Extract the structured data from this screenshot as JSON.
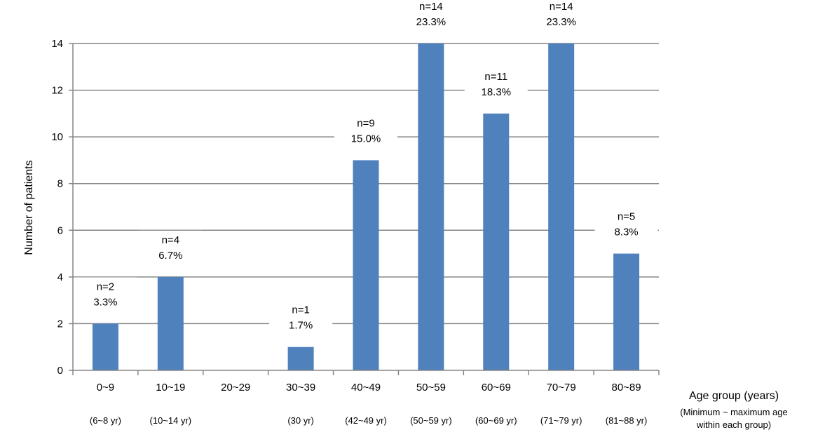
{
  "chart_data": {
    "type": "bar",
    "categories": [
      "0~9",
      "10~19",
      "20~29",
      "30~39",
      "40~49",
      "50~59",
      "60~69",
      "70~79",
      "80~89"
    ],
    "ranges": [
      "(6~8 yr)",
      "(10~14 yr)",
      "",
      "(30 yr)",
      "(42~49 yr)",
      "(50~59 yr)",
      "(60~69 yr)",
      "(71~79 yr)",
      "(81~88 yr)"
    ],
    "values": [
      2,
      4,
      0,
      1,
      9,
      14,
      11,
      14,
      5
    ],
    "n_labels": [
      "n=2",
      "n=4",
      "",
      "n=1",
      "n=9",
      "n=14",
      "n=11",
      "n=14",
      "n=5"
    ],
    "pct_labels": [
      "3.3%",
      "6.7%",
      "",
      "1.7%",
      "15.0%",
      "23.3%",
      "18.3%",
      "23.3%",
      "8.3%"
    ],
    "yticks": [
      "0",
      "2",
      "4",
      "6",
      "8",
      "10",
      "12",
      "14"
    ],
    "ylim": [
      0,
      14
    ],
    "ylabel": "Number of patients",
    "xlabel": "Age group (years)",
    "xlabel_note_line1": "(Minimum ~ maximum age",
    "xlabel_note_line2": "within each group)",
    "bar_color": "#4f81bd",
    "grid": true
  }
}
